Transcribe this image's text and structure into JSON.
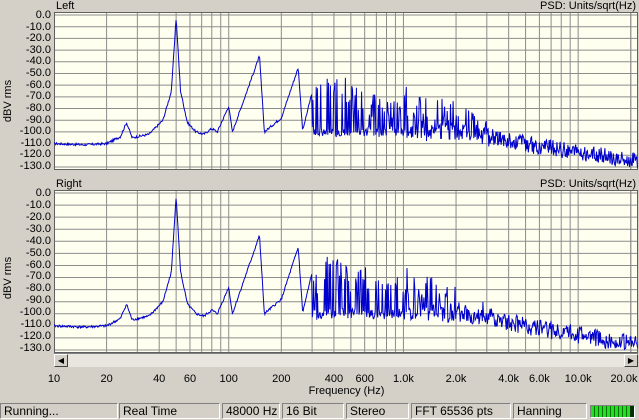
{
  "panes": [
    {
      "channel": "Left",
      "units": "PSD: Units/sqrt(Hz)",
      "ylabel": "dBV rms"
    },
    {
      "channel": "Right",
      "units": "PSD: Units/sqrt(Hz)",
      "ylabel": "dBV rms"
    }
  ],
  "y_ticks": [
    "0.0",
    "-10.0",
    "-20.0",
    "-30.0",
    "-40.0",
    "-50.0",
    "-60.0",
    "-70.0",
    "-80.0",
    "-90.0",
    "-100.0",
    "-110.0",
    "-120.0",
    "-130.0"
  ],
  "x_ticks": [
    "10",
    "20",
    "40",
    "60",
    "100",
    "200",
    "400",
    "600",
    "1.0k",
    "2.0k",
    "4.0k",
    "6.0k",
    "10.0k",
    "20.0k"
  ],
  "xlabel": "Frequency (Hz)",
  "status": {
    "state": "Running...",
    "mode": "Real Time",
    "sample_rate": "48000 Hz",
    "bits": "16 Bit",
    "channels": "Stereo",
    "fft": "FFT 65536 pts",
    "window": "Hanning",
    "level_fraction": 0.9
  },
  "colors": {
    "trace": "#0000cc",
    "plot_bg": "#fffff0",
    "grid": "#8c8c8c"
  },
  "chart_data": {
    "type": "line",
    "x_scale": "log",
    "xlim": [
      10,
      22000
    ],
    "ylim": [
      -130,
      0
    ],
    "grid": true,
    "series_points": [
      [
        10,
        -110
      ],
      [
        15,
        -111
      ],
      [
        20,
        -110
      ],
      [
        24,
        -104
      ],
      [
        26,
        -92
      ],
      [
        28,
        -105
      ],
      [
        35,
        -102
      ],
      [
        42,
        -90
      ],
      [
        47,
        -65
      ],
      [
        50,
        -2
      ],
      [
        53,
        -65
      ],
      [
        58,
        -92
      ],
      [
        65,
        -100
      ],
      [
        72,
        -102
      ],
      [
        80,
        -97
      ],
      [
        86,
        -100
      ],
      [
        100,
        -78
      ],
      [
        105,
        -100
      ],
      [
        150,
        -35
      ],
      [
        160,
        -100
      ],
      [
        200,
        -88
      ],
      [
        250,
        -45
      ],
      [
        265,
        -99
      ],
      [
        300,
        -66
      ],
      [
        350,
        -50
      ],
      [
        400,
        -55
      ],
      [
        450,
        -52
      ],
      [
        500,
        -58
      ],
      [
        600,
        -60
      ],
      [
        700,
        -64
      ],
      [
        800,
        -66
      ],
      [
        1000,
        -60
      ],
      [
        1200,
        -68
      ],
      [
        1500,
        -70
      ],
      [
        2000,
        -74
      ],
      [
        2500,
        -82
      ],
      [
        3000,
        -90
      ],
      [
        4000,
        -100
      ],
      [
        5000,
        -110
      ],
      [
        6000,
        -115
      ],
      [
        8000,
        -118
      ],
      [
        10000,
        -120
      ],
      [
        12000,
        -118
      ],
      [
        15000,
        -122
      ],
      [
        17000,
        -120
      ],
      [
        18000,
        -108
      ],
      [
        19000,
        -121
      ],
      [
        20000,
        -122
      ],
      [
        22000,
        -124
      ]
    ]
  }
}
